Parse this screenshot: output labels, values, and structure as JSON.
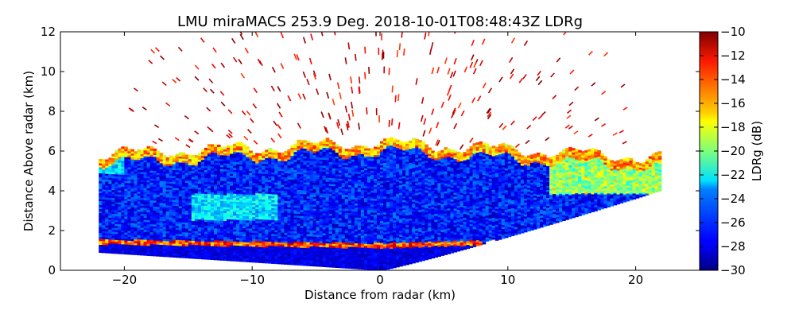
{
  "chart_data": {
    "type": "heatmap",
    "title": "LMU miraMACS 253.9 Deg. 2018-10-01T08:48:43Z  LDRg",
    "xlabel": "Distance from radar (km)",
    "ylabel": "Distance Above radar  (km)",
    "xlim": [
      -25,
      25
    ],
    "ylim": [
      0,
      12
    ],
    "xticks": [
      -20,
      -10,
      0,
      10,
      20
    ],
    "xtick_labels": [
      "−20",
      "−10",
      "0",
      "10",
      "20"
    ],
    "yticks": [
      0,
      2,
      4,
      6,
      8,
      10,
      12
    ],
    "ytick_labels": [
      "0",
      "2",
      "4",
      "6",
      "8",
      "10",
      "12"
    ],
    "colorbar": {
      "label": "LDRg (dB)",
      "range": [
        -30,
        -10
      ],
      "ticks": [
        -30,
        -28,
        -26,
        -24,
        -22,
        -20,
        -18,
        -16,
        -14,
        -12,
        -10
      ],
      "tick_labels": [
        "−30",
        "−28",
        "−26",
        "−24",
        "−22",
        "−20",
        "−18",
        "−16",
        "−14",
        "−12",
        "−10"
      ],
      "colormap": "jet"
    },
    "scan": {
      "azimuth_deg": 253.9,
      "timestamp": "2018-10-01T08:48:43Z",
      "variable": "LDRg",
      "left_edge_km": -22,
      "right_edge_km": 21.8
    },
    "regions": [
      {
        "name": "cloud top layer",
        "x_range": [
          -22,
          22
        ],
        "top_km_left": 5.8,
        "top_km_mid": 6.4,
        "top_km_right": 5.6,
        "ldr_db": -16
      },
      {
        "name": "cloud body",
        "ldr_db": -27
      },
      {
        "name": "melting layer",
        "height_km_left": 1.4,
        "height_km_center": 1.2,
        "ldr_db": -14
      },
      {
        "name": "below melting layer",
        "ldr_db": -29
      },
      {
        "name": "sparse returns aloft",
        "height_range_km": [
          6.5,
          12
        ],
        "ldr_db": -11
      }
    ]
  }
}
